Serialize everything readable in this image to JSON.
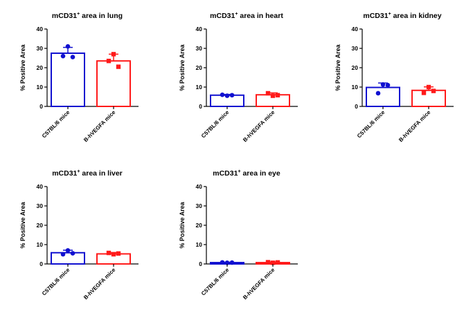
{
  "chart_data": [
    {
      "type": "bar",
      "title": {
        "prefix": "mCD31",
        "sup": "+",
        "suffix": " area in lung"
      },
      "ylabel": "%  Positive Area",
      "ylim": [
        0,
        40
      ],
      "yticks": [
        0,
        10,
        20,
        30,
        40
      ],
      "categories": [
        "C57BL/6 mice",
        "B-hVEGFA mice"
      ],
      "values": [
        27.5,
        23.5
      ],
      "errors": [
        3.0,
        3.5
      ],
      "points": [
        [
          31.0,
          26.0,
          25.5
        ],
        [
          27.0,
          23.5,
          20.5
        ]
      ],
      "colors": [
        "#1010d0",
        "#ff1a1a"
      ],
      "markers": [
        "circle",
        "square"
      ]
    },
    {
      "type": "bar",
      "title": {
        "prefix": "mCD31",
        "sup": "+",
        "suffix": " area in heart"
      },
      "ylabel": "%  Positive Area",
      "ylim": [
        0,
        40
      ],
      "yticks": [
        0,
        10,
        20,
        30,
        40
      ],
      "categories": [
        "C57BL/6 mice",
        "B-hVEGFA mice"
      ],
      "values": [
        5.8,
        6.0
      ],
      "errors": [
        0.4,
        1.0
      ],
      "points": [
        [
          5.5,
          6.0,
          5.8
        ],
        [
          5.5,
          6.8,
          5.8
        ]
      ],
      "colors": [
        "#1010d0",
        "#ff1a1a"
      ],
      "markers": [
        "circle",
        "square"
      ]
    },
    {
      "type": "bar",
      "title": {
        "prefix": "mCD31",
        "sup": "+",
        "suffix": " area in kidney"
      },
      "ylabel": "%  Positive Area",
      "ylim": [
        0,
        40
      ],
      "yticks": [
        0,
        10,
        20,
        30,
        40
      ],
      "categories": [
        "C57BL/6 mice",
        "B-hVEGFA mice"
      ],
      "values": [
        9.8,
        8.3
      ],
      "errors": [
        2.3,
        1.8
      ],
      "points": [
        [
          11.3,
          6.8,
          11.0
        ],
        [
          10.0,
          7.0,
          8.0
        ]
      ],
      "colors": [
        "#1010d0",
        "#ff1a1a"
      ],
      "markers": [
        "circle",
        "square"
      ]
    },
    {
      "type": "bar",
      "title": {
        "prefix": "mCD31",
        "sup": "+",
        "suffix": " area in liver"
      },
      "ylabel": "%  Positive Area",
      "ylim": [
        0,
        40
      ],
      "yticks": [
        0,
        10,
        20,
        30,
        40
      ],
      "categories": [
        "C57BL/6 mice",
        "B-hVEGFA mice"
      ],
      "values": [
        5.8,
        5.2
      ],
      "errors": [
        1.3,
        0.7
      ],
      "points": [
        [
          7.0,
          5.0,
          5.5
        ],
        [
          5.0,
          5.7,
          5.4
        ]
      ],
      "colors": [
        "#1010d0",
        "#ff1a1a"
      ],
      "markers": [
        "circle",
        "square"
      ]
    },
    {
      "type": "bar",
      "title": {
        "prefix": "mCD31",
        "sup": "+",
        "suffix": " area in eye"
      },
      "ylabel": "%  Positive Area",
      "ylim": [
        0,
        40
      ],
      "yticks": [
        0,
        10,
        20,
        30,
        40
      ],
      "categories": [
        "C57BL/6 mice",
        "B-hVEGFA mice"
      ],
      "values": [
        0.7,
        0.7
      ],
      "errors": [
        0.2,
        0.3
      ],
      "points": [
        [
          0.6,
          0.8,
          0.7
        ],
        [
          0.6,
          0.9,
          0.8
        ]
      ],
      "colors": [
        "#1010d0",
        "#ff1a1a"
      ],
      "markers": [
        "circle",
        "square"
      ]
    }
  ]
}
